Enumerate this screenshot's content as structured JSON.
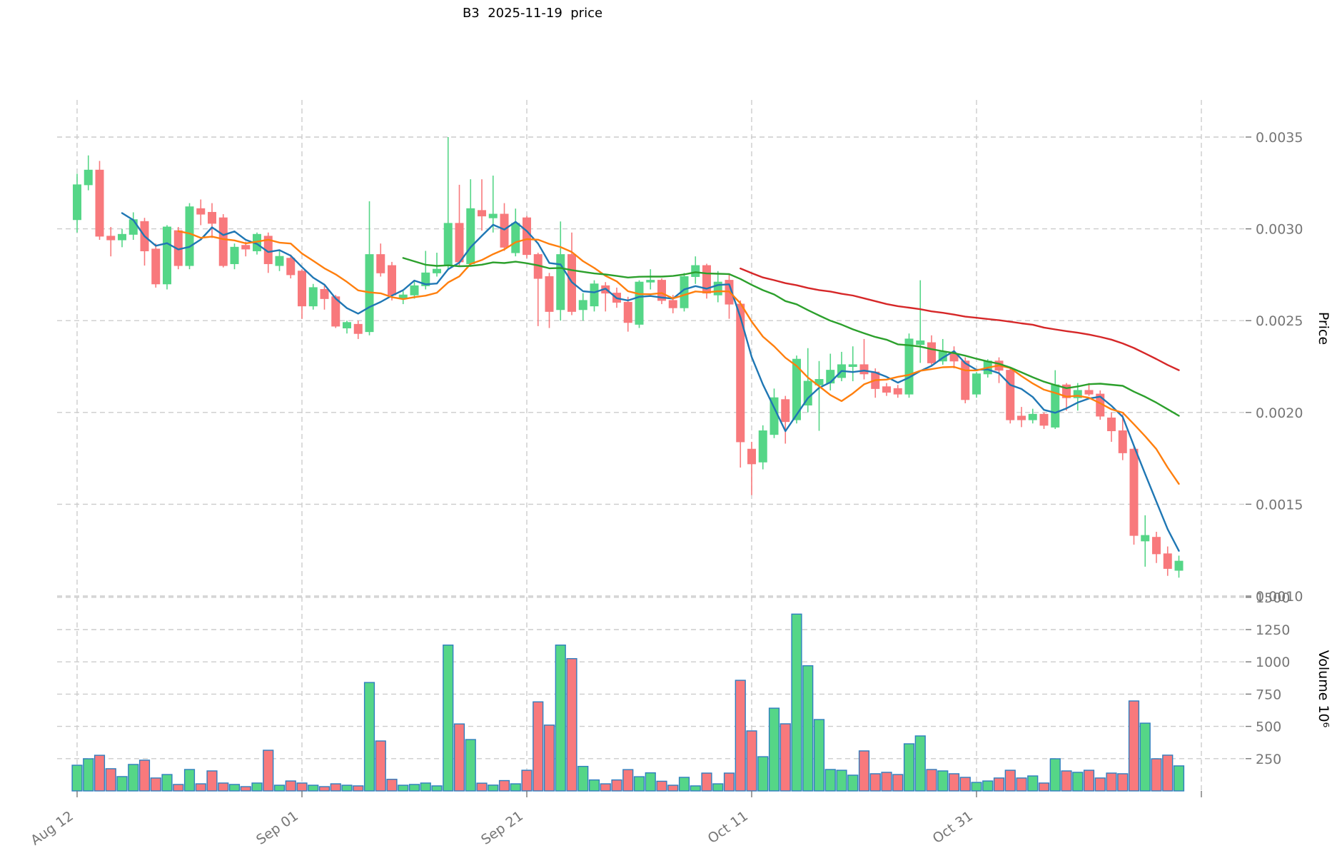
{
  "title": "B3  2025-11-19  price",
  "chart_data": {
    "type": "candlestick",
    "title": "B3  2025-11-19  price",
    "price_axis": {
      "label": "Price",
      "ticks": [
        0.0035,
        0.003,
        0.0025,
        0.002,
        0.0015,
        0.001
      ],
      "range": [
        0.00095,
        0.0037
      ]
    },
    "volume_axis": {
      "label": "Volume  10⁶",
      "ticks": [
        1500,
        1250,
        1000,
        750,
        500,
        250
      ],
      "range": [
        0,
        1500
      ],
      "unit_exponent": 6
    },
    "x_ticks": [
      {
        "index": 0,
        "label": "Aug 12"
      },
      {
        "index": 20,
        "label": "Sep 01"
      },
      {
        "index": 40,
        "label": "Sep 21"
      },
      {
        "index": 60,
        "label": "Oct 11"
      },
      {
        "index": 80,
        "label": "Oct 31"
      },
      {
        "index": 100,
        "label": ""
      }
    ],
    "grid": true,
    "legend": null,
    "moving_averages": [
      {
        "window": 5,
        "color": "#1f77b4"
      },
      {
        "window": 10,
        "color": "#ff7f0e"
      },
      {
        "window": 30,
        "color": "#2ca02c"
      },
      {
        "window": 60,
        "color": "#d62728"
      }
    ],
    "colors": {
      "up": "#55d687",
      "down": "#f8797c",
      "volume_edge": "#2f7ec0",
      "grid": "#cccccc",
      "tick_text": "#767676"
    },
    "columns": [
      "date",
      "open",
      "high",
      "low",
      "close",
      "volume_millions"
    ],
    "candles": [
      [
        "2025-08-12",
        0.00305,
        0.0033,
        0.00298,
        0.00324,
        199
      ],
      [
        "2025-08-13",
        0.00324,
        0.0034,
        0.00321,
        0.00332,
        249
      ],
      [
        "2025-08-14",
        0.00332,
        0.00337,
        0.00294,
        0.00296,
        276
      ],
      [
        "2025-08-15",
        0.00296,
        0.00301,
        0.00285,
        0.00294,
        172
      ],
      [
        "2025-08-16",
        0.00294,
        0.003,
        0.0029,
        0.00297,
        111
      ],
      [
        "2025-08-17",
        0.00297,
        0.00309,
        0.00294,
        0.00305,
        205
      ],
      [
        "2025-08-18",
        0.00304,
        0.00306,
        0.0028,
        0.00288,
        238
      ],
      [
        "2025-08-19",
        0.00289,
        0.00292,
        0.00268,
        0.0027,
        100
      ],
      [
        "2025-08-20",
        0.0027,
        0.00302,
        0.00267,
        0.00301,
        127
      ],
      [
        "2025-08-21",
        0.00299,
        0.00301,
        0.00278,
        0.0028,
        50
      ],
      [
        "2025-08-22",
        0.0028,
        0.00314,
        0.00278,
        0.00312,
        166
      ],
      [
        "2025-08-23",
        0.00311,
        0.00316,
        0.00302,
        0.00308,
        55
      ],
      [
        "2025-08-24",
        0.00309,
        0.00314,
        0.00295,
        0.00303,
        155
      ],
      [
        "2025-08-25",
        0.00306,
        0.00308,
        0.00279,
        0.0028,
        61
      ],
      [
        "2025-08-26",
        0.00281,
        0.00292,
        0.00278,
        0.0029,
        50
      ],
      [
        "2025-08-27",
        0.00291,
        0.00293,
        0.00285,
        0.00289,
        33
      ],
      [
        "2025-08-28",
        0.00288,
        0.00298,
        0.00286,
        0.00297,
        61
      ],
      [
        "2025-08-29",
        0.00296,
        0.00298,
        0.00276,
        0.00281,
        315
      ],
      [
        "2025-08-30",
        0.0028,
        0.00288,
        0.00277,
        0.00285,
        44
      ],
      [
        "2025-08-31",
        0.00284,
        0.00286,
        0.00273,
        0.00275,
        77
      ],
      [
        "2025-09-01",
        0.00277,
        0.00278,
        0.00251,
        0.00258,
        61
      ],
      [
        "2025-09-02",
        0.00258,
        0.0027,
        0.00256,
        0.00268,
        44
      ],
      [
        "2025-09-03",
        0.00267,
        0.00269,
        0.00256,
        0.00262,
        33
      ],
      [
        "2025-09-04",
        0.00263,
        0.00264,
        0.00246,
        0.00247,
        55
      ],
      [
        "2025-09-05",
        0.00246,
        0.0025,
        0.00243,
        0.00249,
        44
      ],
      [
        "2025-09-06",
        0.00248,
        0.0025,
        0.0024,
        0.00243,
        39
      ],
      [
        "2025-09-07",
        0.00244,
        0.00315,
        0.00242,
        0.00286,
        840
      ],
      [
        "2025-09-08",
        0.00286,
        0.00292,
        0.00274,
        0.00276,
        387
      ],
      [
        "2025-09-09",
        0.0028,
        0.00282,
        0.00261,
        0.00264,
        90
      ],
      [
        "2025-09-10",
        0.00262,
        0.00266,
        0.00259,
        0.00264,
        44
      ],
      [
        "2025-09-11",
        0.00264,
        0.00272,
        0.00262,
        0.00269,
        50
      ],
      [
        "2025-09-12",
        0.00269,
        0.00288,
        0.00267,
        0.00276,
        61
      ],
      [
        "2025-09-13",
        0.00276,
        0.00287,
        0.00274,
        0.00278,
        39
      ],
      [
        "2025-09-14",
        0.0028,
        0.0035,
        0.00278,
        0.00303,
        1130
      ],
      [
        "2025-09-15",
        0.00303,
        0.00324,
        0.0028,
        0.00282,
        519
      ],
      [
        "2025-09-16",
        0.00281,
        0.00327,
        0.0028,
        0.00311,
        398
      ],
      [
        "2025-09-17",
        0.0031,
        0.00327,
        0.00299,
        0.00307,
        60
      ],
      [
        "2025-09-18",
        0.00306,
        0.00329,
        0.00298,
        0.00308,
        45
      ],
      [
        "2025-09-19",
        0.00308,
        0.00314,
        0.00288,
        0.0029,
        80
      ],
      [
        "2025-09-20",
        0.00287,
        0.00311,
        0.00285,
        0.00303,
        55
      ],
      [
        "2025-09-21",
        0.00306,
        0.00307,
        0.00284,
        0.00286,
        160
      ],
      [
        "2025-09-22",
        0.00286,
        0.00287,
        0.00247,
        0.00273,
        690
      ],
      [
        "2025-09-23",
        0.00274,
        0.00276,
        0.00246,
        0.00255,
        510
      ],
      [
        "2025-09-24",
        0.00256,
        0.00304,
        0.0025,
        0.00286,
        1130
      ],
      [
        "2025-09-25",
        0.00286,
        0.00298,
        0.00253,
        0.00255,
        1025
      ],
      [
        "2025-09-26",
        0.00256,
        0.00265,
        0.0025,
        0.00261,
        190
      ],
      [
        "2025-09-27",
        0.00258,
        0.00272,
        0.00255,
        0.0027,
        85
      ],
      [
        "2025-09-28",
        0.00269,
        0.00271,
        0.00255,
        0.00265,
        55
      ],
      [
        "2025-09-29",
        0.00265,
        0.00268,
        0.00257,
        0.0026,
        85
      ],
      [
        "2025-09-30",
        0.0026,
        0.00263,
        0.00244,
        0.00249,
        165
      ],
      [
        "2025-10-01",
        0.00248,
        0.00272,
        0.00246,
        0.00271,
        110
      ],
      [
        "2025-10-02",
        0.00271,
        0.00278,
        0.00267,
        0.00272,
        140
      ],
      [
        "2025-10-03",
        0.00272,
        0.00273,
        0.00259,
        0.00261,
        75
      ],
      [
        "2025-10-04",
        0.00261,
        0.00264,
        0.00254,
        0.00257,
        44
      ],
      [
        "2025-10-05",
        0.00257,
        0.00276,
        0.00255,
        0.00274,
        105
      ],
      [
        "2025-10-06",
        0.00274,
        0.00285,
        0.0027,
        0.0028,
        39
      ],
      [
        "2025-10-07",
        0.0028,
        0.00281,
        0.00262,
        0.00265,
        138
      ],
      [
        "2025-10-08",
        0.00264,
        0.00277,
        0.0026,
        0.00271,
        55
      ],
      [
        "2025-10-09",
        0.00272,
        0.00275,
        0.00251,
        0.00259,
        138
      ],
      [
        "2025-10-10",
        0.00259,
        0.00261,
        0.0017,
        0.00184,
        857
      ],
      [
        "2025-10-11",
        0.0018,
        0.00184,
        0.00155,
        0.00172,
        465
      ],
      [
        "2025-10-12",
        0.00173,
        0.00193,
        0.00169,
        0.0019,
        265
      ],
      [
        "2025-10-13",
        0.00188,
        0.00213,
        0.00186,
        0.00208,
        641
      ],
      [
        "2025-10-14",
        0.00207,
        0.00209,
        0.00183,
        0.00195,
        520
      ],
      [
        "2025-10-15",
        0.00196,
        0.00231,
        0.00194,
        0.00229,
        1370
      ],
      [
        "2025-10-16",
        0.00204,
        0.00235,
        0.002,
        0.00217,
        970
      ],
      [
        "2025-10-17",
        0.00215,
        0.00228,
        0.0019,
        0.00218,
        553
      ],
      [
        "2025-10-18",
        0.00216,
        0.00232,
        0.00212,
        0.00223,
        166
      ],
      [
        "2025-10-19",
        0.00219,
        0.00233,
        0.00217,
        0.00226,
        160
      ],
      [
        "2025-10-20",
        0.00225,
        0.00236,
        0.00217,
        0.00226,
        122
      ],
      [
        "2025-10-21",
        0.00226,
        0.0024,
        0.00218,
        0.00221,
        310
      ],
      [
        "2025-10-22",
        0.00222,
        0.00224,
        0.00208,
        0.00213,
        133
      ],
      [
        "2025-10-23",
        0.00214,
        0.00216,
        0.00209,
        0.00211,
        144
      ],
      [
        "2025-10-24",
        0.00213,
        0.00215,
        0.00208,
        0.0021,
        127
      ],
      [
        "2025-10-25",
        0.0021,
        0.00243,
        0.00208,
        0.0024,
        365
      ],
      [
        "2025-10-26",
        0.00237,
        0.00272,
        0.00227,
        0.00239,
        426
      ],
      [
        "2025-10-27",
        0.00238,
        0.00242,
        0.00225,
        0.00227,
        166
      ],
      [
        "2025-10-28",
        0.00228,
        0.0024,
        0.00226,
        0.00233,
        155
      ],
      [
        "2025-10-29",
        0.00232,
        0.00236,
        0.00224,
        0.00228,
        133
      ],
      [
        "2025-10-30",
        0.00228,
        0.0023,
        0.00205,
        0.00207,
        105
      ],
      [
        "2025-10-31",
        0.0021,
        0.00222,
        0.00208,
        0.00221,
        66
      ],
      [
        "2025-11-01",
        0.00221,
        0.00229,
        0.00219,
        0.00228,
        77
      ],
      [
        "2025-11-02",
        0.00228,
        0.0023,
        0.00216,
        0.00223,
        100
      ],
      [
        "2025-11-03",
        0.00223,
        0.00224,
        0.00194,
        0.00196,
        160
      ],
      [
        "2025-11-04",
        0.00198,
        0.00203,
        0.00192,
        0.00196,
        100
      ],
      [
        "2025-11-05",
        0.00196,
        0.00202,
        0.00194,
        0.00199,
        116
      ],
      [
        "2025-11-06",
        0.00199,
        0.002,
        0.00191,
        0.00193,
        61
      ],
      [
        "2025-11-07",
        0.00192,
        0.00223,
        0.00191,
        0.00215,
        249
      ],
      [
        "2025-11-08",
        0.00215,
        0.00216,
        0.00201,
        0.00208,
        155
      ],
      [
        "2025-11-09",
        0.00208,
        0.00216,
        0.00201,
        0.00212,
        144
      ],
      [
        "2025-11-10",
        0.00212,
        0.00216,
        0.00209,
        0.0021,
        160
      ],
      [
        "2025-11-11",
        0.0021,
        0.00212,
        0.00196,
        0.00198,
        100
      ],
      [
        "2025-11-12",
        0.00197,
        0.002,
        0.00184,
        0.0019,
        138
      ],
      [
        "2025-11-13",
        0.0019,
        0.00199,
        0.00174,
        0.00178,
        133
      ],
      [
        "2025-11-14",
        0.0018,
        0.00182,
        0.00128,
        0.00133,
        697
      ],
      [
        "2025-11-15",
        0.0013,
        0.00144,
        0.00116,
        0.00133,
        525
      ],
      [
        "2025-11-16",
        0.00132,
        0.00135,
        0.00118,
        0.00123,
        249
      ],
      [
        "2025-11-17",
        0.00123,
        0.00127,
        0.00111,
        0.00115,
        277
      ],
      [
        "2025-11-18",
        0.00114,
        0.00122,
        0.0011,
        0.00119,
        194
      ]
    ]
  }
}
